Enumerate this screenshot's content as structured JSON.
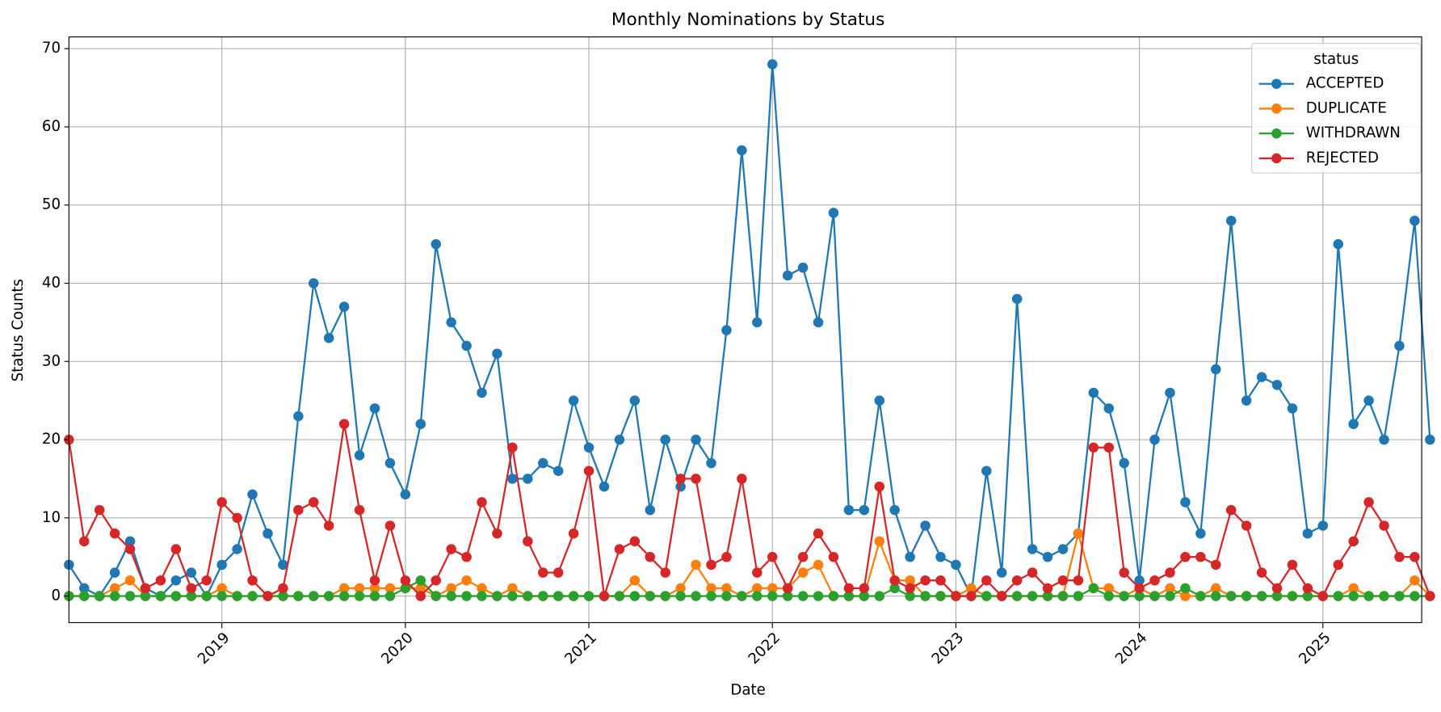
{
  "chart_data": {
    "type": "line",
    "title": "Monthly Nominations by Status",
    "xlabel": "Date",
    "ylabel": "Status Counts",
    "legend_title": "status",
    "legend": "upper right",
    "grid": true,
    "x": [
      "2018-03",
      "2018-04",
      "2018-05",
      "2018-06",
      "2018-07",
      "2018-08",
      "2018-09",
      "2018-10",
      "2018-11",
      "2018-12",
      "2019-01",
      "2019-02",
      "2019-03",
      "2019-04",
      "2019-05",
      "2019-06",
      "2019-07",
      "2019-08",
      "2019-09",
      "2019-10",
      "2019-11",
      "2019-12",
      "2020-01",
      "2020-02",
      "2020-03",
      "2020-04",
      "2020-05",
      "2020-06",
      "2020-07",
      "2020-08",
      "2020-09",
      "2020-10",
      "2020-11",
      "2020-12",
      "2021-01",
      "2021-02",
      "2021-03",
      "2021-04",
      "2021-05",
      "2021-06",
      "2021-07",
      "2021-08",
      "2021-09",
      "2021-10",
      "2021-11",
      "2021-12",
      "2022-01",
      "2022-02",
      "2022-03",
      "2022-04",
      "2022-05",
      "2022-06",
      "2022-07",
      "2022-08",
      "2022-09",
      "2022-10",
      "2022-11",
      "2022-12",
      "2023-01",
      "2023-02",
      "2023-03",
      "2023-04",
      "2023-05",
      "2023-06",
      "2023-07",
      "2023-08",
      "2023-09",
      "2023-10",
      "2023-11",
      "2023-12",
      "2024-01",
      "2024-02",
      "2024-03",
      "2024-04",
      "2024-05",
      "2024-06",
      "2024-07",
      "2024-08",
      "2024-09",
      "2024-10",
      "2024-11",
      "2024-12",
      "2025-01",
      "2025-02",
      "2025-03",
      "2025-04",
      "2025-05",
      "2025-06",
      "2025-07",
      "2025-08"
    ],
    "xlim": [
      "2018-03",
      "2025-08"
    ],
    "xticks": [
      2019,
      2020,
      2021,
      2022,
      2023,
      2024,
      2025
    ],
    "ylim": [
      -3.4,
      71.5
    ],
    "yticks": [
      0,
      10,
      20,
      30,
      40,
      50,
      60,
      70
    ],
    "series": [
      {
        "name": "ACCEPTED",
        "color": "#1f77b4",
        "values": [
          4,
          1,
          0,
          3,
          7,
          1,
          0,
          2,
          3,
          0,
          4,
          6,
          13,
          8,
          4,
          23,
          40,
          33,
          37,
          18,
          24,
          17,
          13,
          22,
          45,
          35,
          32,
          26,
          31,
          15,
          15,
          17,
          16,
          25,
          19,
          14,
          20,
          25,
          11,
          20,
          14,
          20,
          17,
          34,
          57,
          35,
          68,
          41,
          42,
          35,
          49,
          11,
          11,
          25,
          11,
          5,
          9,
          5,
          4,
          0,
          16,
          3,
          38,
          6,
          5,
          6,
          8,
          26,
          24,
          17,
          2,
          20,
          26,
          12,
          8,
          29,
          48,
          25,
          28,
          27,
          24,
          8,
          9,
          45,
          22,
          25,
          20,
          32,
          48,
          20
        ]
      },
      {
        "name": "DUPLICATE",
        "color": "#ff7f0e",
        "values": [
          0,
          0,
          0,
          1,
          2,
          0,
          0,
          0,
          0,
          0,
          1,
          0,
          0,
          0,
          0,
          0,
          0,
          0,
          1,
          1,
          1,
          1,
          1,
          1,
          0,
          1,
          2,
          1,
          0,
          1,
          0,
          0,
          0,
          0,
          0,
          0,
          0,
          2,
          0,
          0,
          1,
          4,
          1,
          1,
          0,
          1,
          1,
          1,
          3,
          4,
          0,
          0,
          0,
          7,
          2,
          2,
          0,
          0,
          0,
          1,
          0,
          0,
          0,
          0,
          0,
          0,
          8,
          1,
          1,
          0,
          1,
          0,
          1,
          0,
          0,
          1,
          0,
          0,
          0,
          0,
          0,
          0,
          0,
          0,
          1,
          0,
          0,
          0,
          2,
          0
        ]
      },
      {
        "name": "WITHDRAWN",
        "color": "#2ca02c",
        "values": [
          0,
          0,
          0,
          0,
          0,
          0,
          0,
          0,
          0,
          0,
          0,
          0,
          0,
          0,
          0,
          0,
          0,
          0,
          0,
          0,
          0,
          0,
          1,
          2,
          0,
          0,
          0,
          0,
          0,
          0,
          0,
          0,
          0,
          0,
          0,
          0,
          0,
          0,
          0,
          0,
          0,
          0,
          0,
          0,
          0,
          0,
          0,
          0,
          0,
          0,
          0,
          0,
          0,
          0,
          1,
          0,
          0,
          0,
          0,
          0,
          0,
          0,
          0,
          0,
          0,
          0,
          0,
          1,
          0,
          0,
          0,
          0,
          0,
          1,
          0,
          0,
          0,
          0,
          0,
          0,
          0,
          0,
          0,
          0,
          0,
          0,
          0,
          0,
          0,
          0
        ]
      },
      {
        "name": "REJECTED",
        "color": "#d62728",
        "values": [
          20,
          7,
          11,
          8,
          6,
          1,
          2,
          6,
          1,
          2,
          12,
          10,
          2,
          0,
          1,
          11,
          12,
          9,
          22,
          11,
          2,
          9,
          2,
          0,
          2,
          6,
          5,
          12,
          8,
          19,
          7,
          3,
          3,
          8,
          16,
          0,
          6,
          7,
          5,
          3,
          15,
          15,
          4,
          5,
          15,
          3,
          5,
          1,
          5,
          8,
          5,
          1,
          1,
          14,
          2,
          1,
          2,
          2,
          0,
          0,
          2,
          0,
          2,
          3,
          1,
          2,
          2,
          19,
          19,
          3,
          1,
          2,
          3,
          5,
          5,
          4,
          11,
          9,
          3,
          1,
          4,
          1,
          0,
          4,
          7,
          12,
          9,
          5,
          5,
          0
        ]
      }
    ]
  }
}
